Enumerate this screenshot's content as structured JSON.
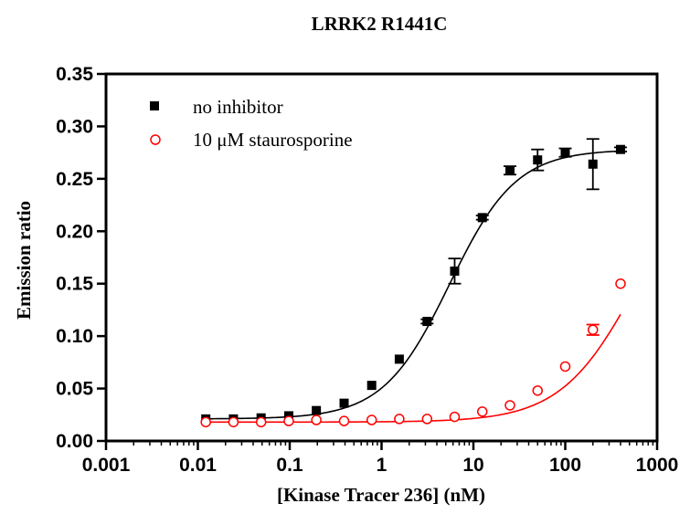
{
  "chart_data": {
    "type": "scatter",
    "title": "LRRK2 R1441C",
    "xlabel": "[Kinase Tracer 236] (nM)",
    "ylabel": "Emission ratio",
    "xscale": "log",
    "xlim": [
      0.001,
      1000
    ],
    "ylim": [
      0,
      0.35
    ],
    "x_ticks": [
      {
        "value": 0.001,
        "label": "0.001"
      },
      {
        "value": 0.01,
        "label": "0.01"
      },
      {
        "value": 0.1,
        "label": "0.1"
      },
      {
        "value": 1,
        "label": "1"
      },
      {
        "value": 10,
        "label": "10"
      },
      {
        "value": 100,
        "label": "100"
      },
      {
        "value": 1000,
        "label": "1000"
      }
    ],
    "y_ticks": [
      {
        "value": 0,
        "label": "0.00"
      },
      {
        "value": 0.05,
        "label": "0.05"
      },
      {
        "value": 0.1,
        "label": "0.10"
      },
      {
        "value": 0.15,
        "label": "0.15"
      },
      {
        "value": 0.2,
        "label": "0.20"
      },
      {
        "value": 0.25,
        "label": "0.25"
      },
      {
        "value": 0.3,
        "label": "0.30"
      },
      {
        "value": 0.35,
        "label": "0.35"
      }
    ],
    "grid": false,
    "legend_position": "top-left",
    "series": [
      {
        "name": "no inhibitor",
        "color": "#000000",
        "marker": "filled-square",
        "x": [
          0.0122,
          0.0244,
          0.0488,
          0.0977,
          0.195,
          0.391,
          0.781,
          1.56,
          3.13,
          6.25,
          12.5,
          25,
          50,
          100,
          200,
          400
        ],
        "y": [
          0.021,
          0.021,
          0.022,
          0.024,
          0.029,
          0.036,
          0.053,
          0.078,
          0.114,
          0.162,
          0.213,
          0.258,
          0.268,
          0.275,
          0.264,
          0.278
        ],
        "error": [
          0.001,
          0.001,
          0.001,
          0.001,
          0.001,
          0.001,
          0.001,
          0.001,
          0.002,
          0.012,
          0.002,
          0.004,
          0.01,
          0.004,
          0.024,
          0.002
        ],
        "fit": {
          "bottom": 0.021,
          "top": 0.278,
          "ec50": 5.5,
          "hill": 1.2
        }
      },
      {
        "name": "10 μM staurosporine",
        "color": "#ff0000",
        "marker": "open-circle",
        "x": [
          0.0122,
          0.0244,
          0.0488,
          0.0977,
          0.195,
          0.391,
          0.781,
          1.56,
          3.13,
          6.25,
          12.5,
          25,
          50,
          100,
          200,
          400
        ],
        "y": [
          0.018,
          0.018,
          0.018,
          0.019,
          0.02,
          0.019,
          0.02,
          0.021,
          0.021,
          0.023,
          0.028,
          0.034,
          0.048,
          0.071,
          0.106,
          0.15
        ],
        "error": [
          0,
          0,
          0,
          0,
          0,
          0,
          0,
          0,
          0,
          0,
          0,
          0,
          0.001,
          0.001,
          0.005,
          0.001
        ],
        "fit": {
          "bottom": 0.018,
          "top": 0.278,
          "ec50": 600,
          "hill": 1.05
        }
      }
    ]
  }
}
